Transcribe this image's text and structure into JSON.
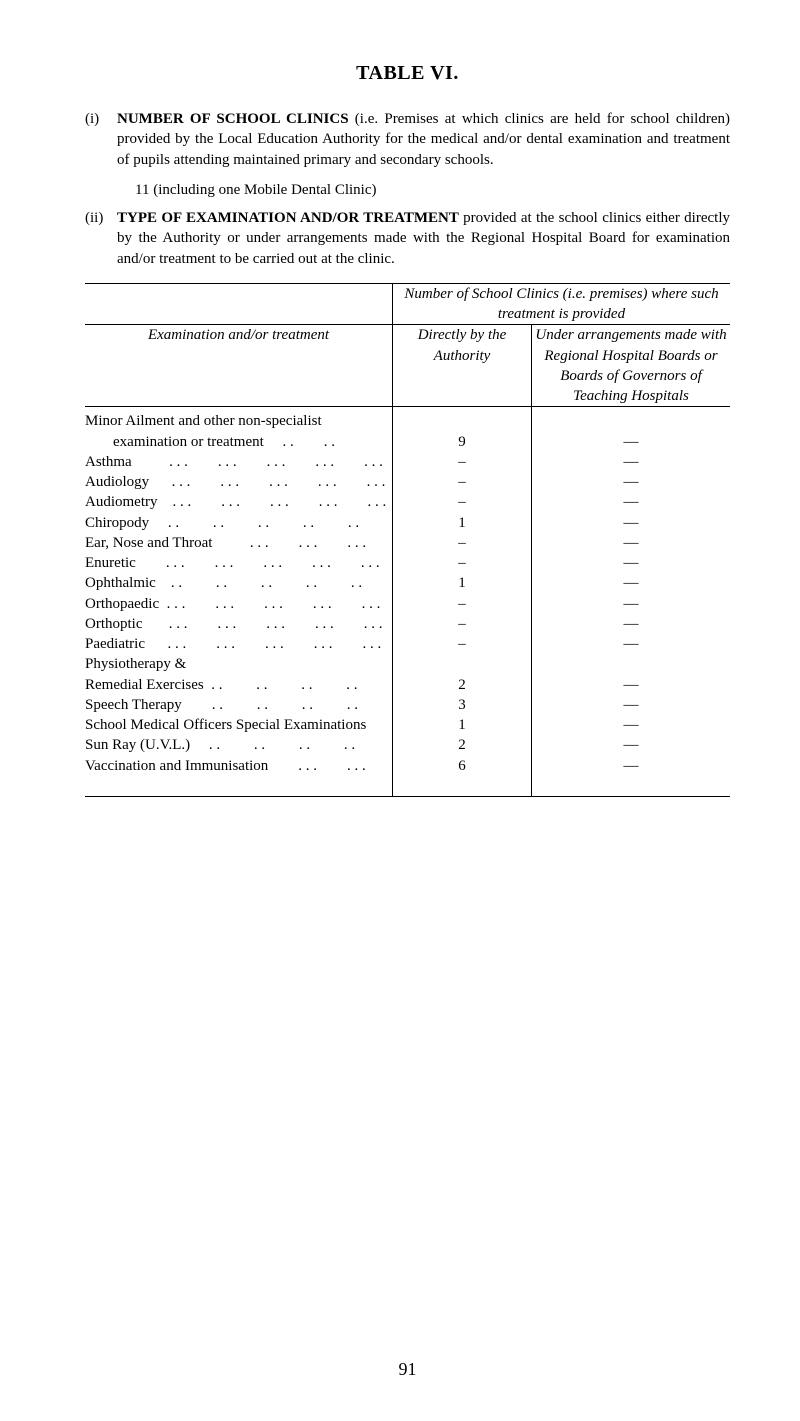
{
  "title": "TABLE VI.",
  "paragraphs": [
    {
      "marker": "(i)",
      "lead": "NUMBER OF SCHOOL CLINICS",
      "rest": " (i.e. Premises at which clinics are held for school children) provided by the Local Education Authority for the medical and/or dental examination and treatment of pupils attending maintained primary and secondary schools.",
      "sub": "11 (including one Mobile Dental Clinic)"
    },
    {
      "marker": "(ii)",
      "lead": "TYPE OF EXAMINATION AND/OR TREATMENT",
      "rest": " provided at the school clinics either directly by the Authority or under arrangements made with the Regional Hos­pital Board for examination and/or treatment to be carried out at the clinic.",
      "sub": null
    }
  ],
  "span_header": "Number of School Clinics (i.e. premises) where such treatment is provided",
  "col_headers": {
    "left": "Examination and/or treatment",
    "mid": "Directly by the Authority",
    "right": "Under arrangements made with Regional Hospital Boards or Boards of Governors of Teaching Hospitals"
  },
  "rows": [
    {
      "label": "Minor Ailment and other non-specialist",
      "indent": false,
      "dots": "",
      "v1": "",
      "v2": ""
    },
    {
      "label": "examination or treatment",
      "indent": true,
      "dots": "     . .        . .",
      "v1": "9",
      "v2": "—"
    },
    {
      "label": "Asthma",
      "indent": false,
      "dots": "          . . .        . . .        . . .        . . .        . . .",
      "v1": "–",
      "v2": "—"
    },
    {
      "label": "Audiology",
      "indent": false,
      "dots": "      . . .        . . .        . . .        . . .        . . .",
      "v1": "–",
      "v2": "—"
    },
    {
      "label": "Audiometry",
      "indent": false,
      "dots": "    . . .        . . .        . . .        . . .        . . .",
      "v1": "–",
      "v2": "—"
    },
    {
      "label": "Chiropody",
      "indent": false,
      "dots": "     . .         . .         . .         . .         . .",
      "v1": "1",
      "v2": "—"
    },
    {
      "label": "Ear, Nose and Throat",
      "indent": false,
      "dots": "          . . .        . . .        . . .",
      "v1": "–",
      "v2": "—"
    },
    {
      "label": "Enuretic",
      "indent": false,
      "dots": "        . . .        . . .        . . .        . . .        . . .",
      "v1": "–",
      "v2": "—"
    },
    {
      "label": "Ophthalmic",
      "indent": false,
      "dots": "    . .         . .         . .         . .         . .",
      "v1": "1",
      "v2": "—"
    },
    {
      "label": "Orthopaedic",
      "indent": false,
      "dots": "  . . .        . . .        . . .        . . .        . . .",
      "v1": "–",
      "v2": "—"
    },
    {
      "label": "Orthoptic",
      "indent": false,
      "dots": "       . . .        . . .        . . .        . . .        . . .",
      "v1": "–",
      "v2": "—"
    },
    {
      "label": "Paediatric",
      "indent": false,
      "dots": "      . . .        . . .        . . .        . . .        . . .",
      "v1": "–",
      "v2": "—"
    },
    {
      "label": "Physiotherapy &",
      "indent": false,
      "dots": "",
      "v1": "",
      "v2": ""
    },
    {
      "label": "Remedial Exercises",
      "indent": false,
      "dots": "  . .         . .         . .         . .",
      "v1": "2",
      "v2": "—"
    },
    {
      "label": "Speech Therapy",
      "indent": false,
      "dots": "        . .         . .         . .         . .",
      "v1": "3",
      "v2": "—"
    },
    {
      "label": "School Medical Officers Special Examinations",
      "indent": false,
      "dots": "",
      "v1": "1",
      "v2": "—"
    },
    {
      "label": "Sun Ray (U.V.L.)",
      "indent": false,
      "dots": "     . .         . .         . .         . .",
      "v1": "2",
      "v2": "—"
    },
    {
      "label": "Vaccination and Immunisation",
      "indent": false,
      "dots": "        . . .        . . .",
      "v1": "6",
      "v2": "—"
    }
  ],
  "page_number": "91"
}
